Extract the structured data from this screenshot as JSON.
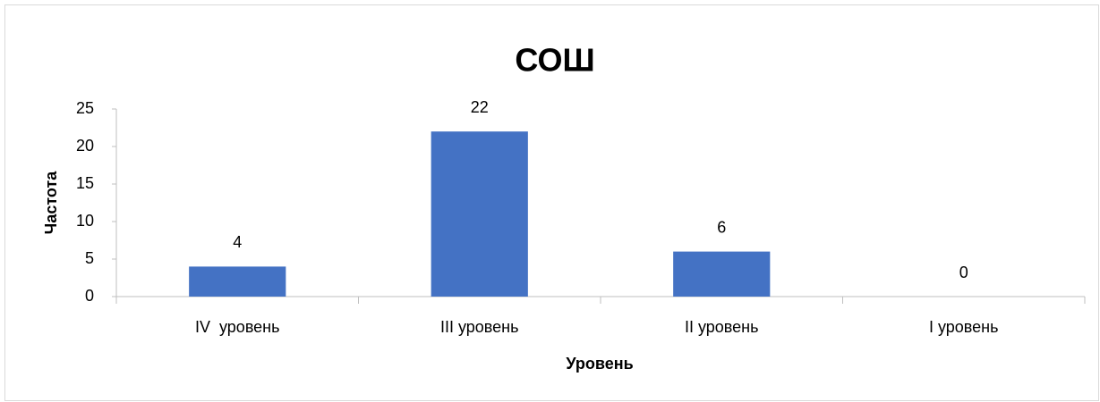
{
  "chart_data": {
    "type": "bar",
    "title": "СОШ",
    "x_label": "Уровень",
    "y_label": "Частота",
    "categories": [
      "IV  уровень",
      "III уровень",
      "II уровень",
      "I уровень"
    ],
    "values": [
      4,
      22,
      6,
      0
    ],
    "color": "#4472c4",
    "ylim": [
      0,
      25
    ],
    "yticks": [
      0,
      5,
      10,
      15,
      20,
      25
    ],
    "grid": false
  }
}
